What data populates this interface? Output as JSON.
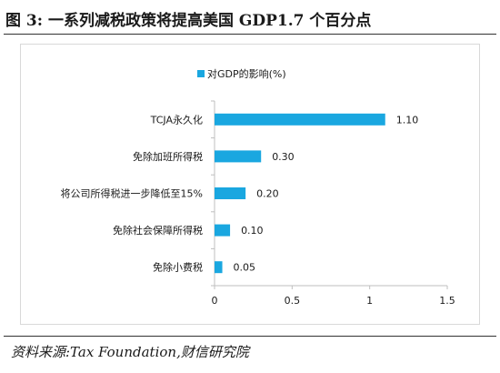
{
  "figure": {
    "title": "图 3:  一系列减税政策将提高美国 GDP1.7 个百分点",
    "source": "资料来源:Tax Foundation,财信研究院"
  },
  "colors": {
    "bar": "#1aa7e0",
    "axis": "#bfbfbf",
    "text": "#1a1a1a"
  },
  "chart_data": {
    "type": "bar",
    "orientation": "horizontal",
    "categories": [
      "TCJA永久化",
      "免除加班所得税",
      "将公司所得税进一步降低至15%",
      "免除社会保障所得税",
      "免除小费税"
    ],
    "series": [
      {
        "name": "对GDP的影响(%)",
        "values": [
          1.1,
          0.3,
          0.2,
          0.1,
          0.05
        ]
      }
    ],
    "data_labels": [
      "1.10",
      "0.30",
      "0.20",
      "0.10",
      "0.05"
    ],
    "x_ticks": [
      0,
      0.5,
      1,
      1.5
    ],
    "x_tick_labels": [
      "0",
      "0.5",
      "1",
      "1.5"
    ],
    "xlim": [
      0,
      1.5
    ],
    "legend_position": "top",
    "grid": false
  }
}
